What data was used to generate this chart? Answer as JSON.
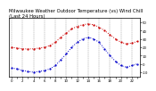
{
  "title": "Milwaukee Weather Outdoor Temperature (vs) Wind Chill (Last 24 Hours)",
  "hours": [
    0,
    1,
    2,
    3,
    4,
    5,
    6,
    7,
    8,
    9,
    10,
    11,
    12,
    13,
    14,
    15,
    16,
    17,
    18,
    19,
    20,
    21,
    22,
    23
  ],
  "temp": [
    20,
    19,
    18,
    18,
    18,
    19,
    20,
    22,
    26,
    32,
    37,
    42,
    45,
    47,
    48,
    47,
    44,
    40,
    35,
    30,
    26,
    24,
    25,
    27
  ],
  "wind_chill": [
    -5,
    -6,
    -8,
    -9,
    -10,
    -9,
    -8,
    -6,
    -2,
    5,
    12,
    20,
    26,
    30,
    32,
    30,
    26,
    18,
    10,
    3,
    -2,
    -4,
    -2,
    0
  ],
  "temp_color": "#cc0000",
  "wind_color": "#0000cc",
  "bg_color": "#ffffff",
  "grid_color": "#888888",
  "ylim": [
    -15,
    55
  ],
  "ytick_vals": [
    -10,
    0,
    10,
    20,
    30,
    40,
    50
  ],
  "ytick_labels": [
    "-10",
    "0",
    "10",
    "20",
    "30",
    "40",
    "50"
  ],
  "xlabel_fontsize": 2.8,
  "ylabel_fontsize": 2.8,
  "title_fontsize": 3.8,
  "grid_interval": 2,
  "linewidth": 0.7,
  "markersize": 1.2
}
